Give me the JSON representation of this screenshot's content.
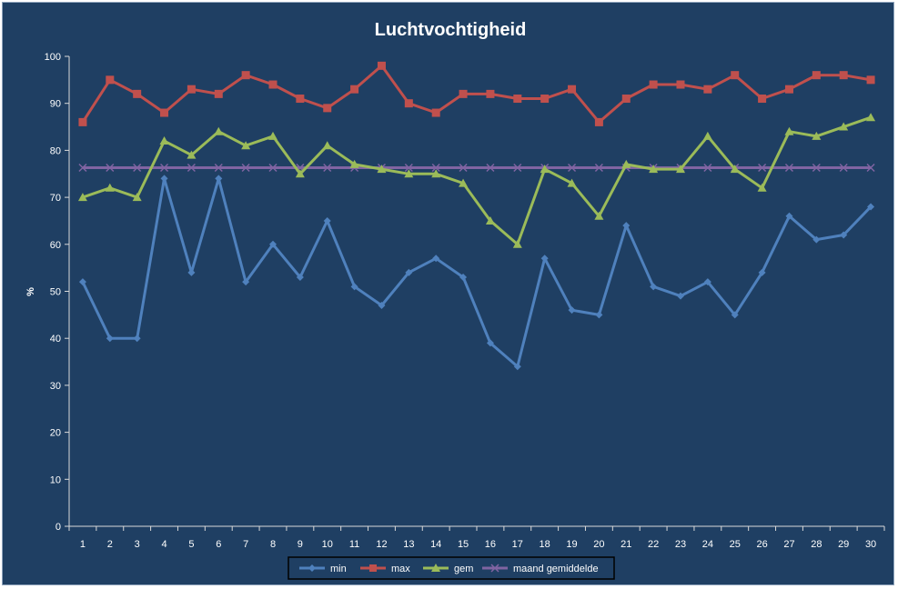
{
  "chart_data": {
    "type": "line",
    "title": "Luchtvochtigheid",
    "xlabel": "",
    "ylabel": "%",
    "ylim": [
      0,
      100
    ],
    "ytick_step": 10,
    "grid": false,
    "legend_position": "bottom",
    "x": [
      1,
      2,
      3,
      4,
      5,
      6,
      7,
      8,
      9,
      10,
      11,
      12,
      13,
      14,
      15,
      16,
      17,
      18,
      19,
      20,
      21,
      22,
      23,
      24,
      25,
      26,
      27,
      28,
      29,
      30
    ],
    "series": [
      {
        "name": "min",
        "color": "#4f81bd",
        "marker": "diamond",
        "values": [
          52,
          40,
          40,
          74,
          54,
          74,
          52,
          60,
          53,
          65,
          51,
          47,
          54,
          57,
          53,
          39,
          34,
          57,
          46,
          45,
          64,
          51,
          49,
          52,
          45,
          54,
          66,
          61,
          62,
          68
        ]
      },
      {
        "name": "max",
        "color": "#c0504d",
        "marker": "square",
        "values": [
          86,
          95,
          92,
          88,
          93,
          92,
          96,
          94,
          91,
          89,
          93,
          98,
          90,
          88,
          92,
          92,
          91,
          91,
          93,
          86,
          91,
          94,
          94,
          93,
          96,
          91,
          93,
          96,
          96,
          95
        ]
      },
      {
        "name": "gem",
        "color": "#9bbb59",
        "marker": "triangle",
        "values": [
          70,
          72,
          70,
          82,
          79,
          84,
          81,
          83,
          75,
          81,
          77,
          76,
          75,
          75,
          73,
          65,
          60,
          76,
          73,
          66,
          77,
          76,
          76,
          83,
          76,
          72,
          84,
          83,
          85,
          87
        ]
      },
      {
        "name": "maand gemiddelde",
        "color": "#8064a2",
        "marker": "x",
        "values": [
          76.3,
          76.3,
          76.3,
          76.3,
          76.3,
          76.3,
          76.3,
          76.3,
          76.3,
          76.3,
          76.3,
          76.3,
          76.3,
          76.3,
          76.3,
          76.3,
          76.3,
          76.3,
          76.3,
          76.3,
          76.3,
          76.3,
          76.3,
          76.3,
          76.3,
          76.3,
          76.3,
          76.3,
          76.3,
          76.3
        ]
      }
    ]
  }
}
